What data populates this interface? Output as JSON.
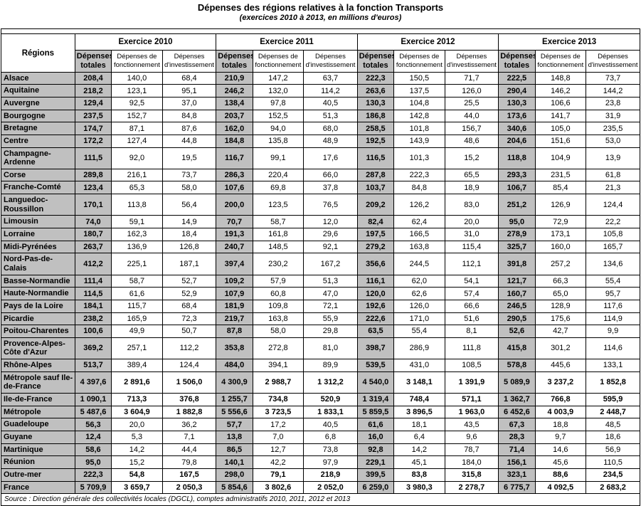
{
  "title": "Dépenses des régions relatives à la fonction Transports",
  "subtitle": "(exercices 2010 à 2013, en millions d'euros)",
  "source": "Source : Direction générale des collectivités locales (DGCL), comptes administratifs 2010, 2011, 2012 et 2013",
  "colors": {
    "shaded": "#c0c0c0"
  },
  "table": {
    "region_header": "Régions",
    "groups": [
      "Exercice 2010",
      "Exercice 2011",
      "Exercice 2012",
      "Exercice 2013"
    ],
    "subcolumns": [
      {
        "lines": [
          "Dépenses",
          "totales"
        ],
        "type": "tot"
      },
      {
        "lines": [
          "Dépenses de",
          "fonctionnement"
        ],
        "type": "sub"
      },
      {
        "lines": [
          "Dépenses",
          "d'investissement"
        ],
        "type": "sub"
      }
    ],
    "rows": [
      {
        "name": "Alsace",
        "bold": false,
        "values": [
          "208,4",
          "140,0",
          "68,4",
          "210,9",
          "147,2",
          "63,7",
          "222,3",
          "150,5",
          "71,7",
          "222,5",
          "148,8",
          "73,7"
        ]
      },
      {
        "name": "Aquitaine",
        "bold": false,
        "values": [
          "218,2",
          "123,1",
          "95,1",
          "246,2",
          "132,0",
          "114,2",
          "263,6",
          "137,5",
          "126,0",
          "290,4",
          "146,2",
          "144,2"
        ]
      },
      {
        "name": "Auvergne",
        "bold": false,
        "values": [
          "129,4",
          "92,5",
          "37,0",
          "138,4",
          "97,8",
          "40,5",
          "130,3",
          "104,8",
          "25,5",
          "130,3",
          "106,6",
          "23,8"
        ]
      },
      {
        "name": "Bourgogne",
        "bold": false,
        "values": [
          "237,5",
          "152,7",
          "84,8",
          "203,7",
          "152,5",
          "51,3",
          "186,8",
          "142,8",
          "44,0",
          "173,6",
          "141,7",
          "31,9"
        ]
      },
      {
        "name": "Bretagne",
        "bold": false,
        "values": [
          "174,7",
          "87,1",
          "87,6",
          "162,0",
          "94,0",
          "68,0",
          "258,5",
          "101,8",
          "156,7",
          "340,6",
          "105,0",
          "235,5"
        ]
      },
      {
        "name": "Centre",
        "bold": false,
        "values": [
          "172,2",
          "127,4",
          "44,8",
          "184,8",
          "135,8",
          "48,9",
          "192,5",
          "143,9",
          "48,6",
          "204,6",
          "151,6",
          "53,0"
        ]
      },
      {
        "name": "Champagne-Ardenne",
        "bold": false,
        "values": [
          "111,5",
          "92,0",
          "19,5",
          "116,7",
          "99,1",
          "17,6",
          "116,5",
          "101,3",
          "15,2",
          "118,8",
          "104,9",
          "13,9"
        ]
      },
      {
        "name": "Corse",
        "bold": false,
        "values": [
          "289,8",
          "216,1",
          "73,7",
          "286,3",
          "220,4",
          "66,0",
          "287,8",
          "222,3",
          "65,5",
          "293,3",
          "231,5",
          "61,8"
        ]
      },
      {
        "name": "Franche-Comté",
        "bold": false,
        "values": [
          "123,4",
          "65,3",
          "58,0",
          "107,6",
          "69,8",
          "37,8",
          "103,7",
          "84,8",
          "18,9",
          "106,7",
          "85,4",
          "21,3"
        ]
      },
      {
        "name": "Languedoc-Roussillon",
        "bold": false,
        "values": [
          "170,1",
          "113,8",
          "56,4",
          "200,0",
          "123,5",
          "76,5",
          "209,2",
          "126,2",
          "83,0",
          "251,2",
          "126,9",
          "124,4"
        ]
      },
      {
        "name": "Limousin",
        "bold": false,
        "values": [
          "74,0",
          "59,1",
          "14,9",
          "70,7",
          "58,7",
          "12,0",
          "82,4",
          "62,4",
          "20,0",
          "95,0",
          "72,9",
          "22,2"
        ]
      },
      {
        "name": "Lorraine",
        "bold": false,
        "values": [
          "180,7",
          "162,3",
          "18,4",
          "191,3",
          "161,8",
          "29,6",
          "197,5",
          "166,5",
          "31,0",
          "278,9",
          "173,1",
          "105,8"
        ]
      },
      {
        "name": "Midi-Pyrénées",
        "bold": false,
        "values": [
          "263,7",
          "136,9",
          "126,8",
          "240,7",
          "148,5",
          "92,1",
          "279,2",
          "163,8",
          "115,4",
          "325,7",
          "160,0",
          "165,7"
        ]
      },
      {
        "name": "Nord-Pas-de-Calais",
        "bold": false,
        "values": [
          "412,2",
          "225,1",
          "187,1",
          "397,4",
          "230,2",
          "167,2",
          "356,6",
          "244,5",
          "112,1",
          "391,8",
          "257,2",
          "134,6"
        ]
      },
      {
        "name": "Basse-Normandie",
        "bold": false,
        "values": [
          "111,4",
          "58,7",
          "52,7",
          "109,2",
          "57,9",
          "51,3",
          "116,1",
          "62,0",
          "54,1",
          "121,7",
          "66,3",
          "55,4"
        ]
      },
      {
        "name": "Haute-Normandie",
        "bold": false,
        "values": [
          "114,5",
          "61,6",
          "52,9",
          "107,9",
          "60,8",
          "47,0",
          "120,0",
          "62,6",
          "57,4",
          "160,7",
          "65,0",
          "95,7"
        ]
      },
      {
        "name": "Pays de la Loire",
        "bold": false,
        "values": [
          "184,1",
          "115,7",
          "68,4",
          "181,9",
          "109,8",
          "72,1",
          "192,6",
          "126,0",
          "66,6",
          "246,5",
          "128,9",
          "117,6"
        ]
      },
      {
        "name": "Picardie",
        "bold": false,
        "values": [
          "238,2",
          "165,9",
          "72,3",
          "219,7",
          "163,8",
          "55,9",
          "222,6",
          "171,0",
          "51,6",
          "290,5",
          "175,6",
          "114,9"
        ]
      },
      {
        "name": "Poitou-Charentes",
        "bold": false,
        "values": [
          "100,6",
          "49,9",
          "50,7",
          "87,8",
          "58,0",
          "29,8",
          "63,5",
          "55,4",
          "8,1",
          "52,6",
          "42,7",
          "9,9"
        ]
      },
      {
        "name": "Provence-Alpes-Côte d'Azur",
        "bold": false,
        "values": [
          "369,2",
          "257,1",
          "112,2",
          "353,8",
          "272,8",
          "81,0",
          "398,7",
          "286,9",
          "111,8",
          "415,8",
          "301,2",
          "114,6"
        ]
      },
      {
        "name": "Rhône-Alpes",
        "bold": false,
        "values": [
          "513,7",
          "389,4",
          "124,4",
          "484,0",
          "394,1",
          "89,9",
          "539,5",
          "431,0",
          "108,5",
          "578,8",
          "445,6",
          "133,1"
        ]
      },
      {
        "name": "Métropole sauf Ile-de-France",
        "bold": true,
        "values": [
          "4 397,6",
          "2 891,6",
          "1 506,0",
          "4 300,9",
          "2 988,7",
          "1 312,2",
          "4 540,0",
          "3 148,1",
          "1 391,9",
          "5 089,9",
          "3 237,2",
          "1 852,8"
        ]
      },
      {
        "name": "Ile-de-France",
        "bold": true,
        "values": [
          "1 090,1",
          "713,3",
          "376,8",
          "1 255,7",
          "734,8",
          "520,9",
          "1 319,4",
          "748,4",
          "571,1",
          "1 362,7",
          "766,8",
          "595,9"
        ]
      },
      {
        "name": "Métropole",
        "bold": true,
        "values": [
          "5 487,6",
          "3 604,9",
          "1 882,8",
          "5 556,6",
          "3 723,5",
          "1 833,1",
          "5 859,5",
          "3 896,5",
          "1 963,0",
          "6 452,6",
          "4 003,9",
          "2 448,7"
        ]
      },
      {
        "name": "Guadeloupe",
        "bold": false,
        "values": [
          "56,3",
          "20,0",
          "36,2",
          "57,7",
          "17,2",
          "40,5",
          "61,6",
          "18,1",
          "43,5",
          "67,3",
          "18,8",
          "48,5"
        ]
      },
      {
        "name": "Guyane",
        "bold": false,
        "values": [
          "12,4",
          "5,3",
          "7,1",
          "13,8",
          "7,0",
          "6,8",
          "16,0",
          "6,4",
          "9,6",
          "28,3",
          "9,7",
          "18,6"
        ]
      },
      {
        "name": "Martinique",
        "bold": false,
        "values": [
          "58,6",
          "14,2",
          "44,4",
          "86,5",
          "12,7",
          "73,8",
          "92,8",
          "14,2",
          "78,7",
          "71,4",
          "14,6",
          "56,9"
        ]
      },
      {
        "name": "Réunion",
        "bold": false,
        "values": [
          "95,0",
          "15,2",
          "79,8",
          "140,1",
          "42,2",
          "97,9",
          "229,1",
          "45,1",
          "184,0",
          "156,1",
          "45,6",
          "110,5"
        ]
      },
      {
        "name": "Outre-mer",
        "bold": true,
        "values": [
          "222,3",
          "54,8",
          "167,5",
          "298,0",
          "79,1",
          "218,9",
          "399,5",
          "83,8",
          "315,8",
          "323,1",
          "88,6",
          "234,5"
        ]
      },
      {
        "name": "France",
        "bold": true,
        "values": [
          "5 709,9",
          "3 659,7",
          "2 050,3",
          "5 854,6",
          "3 802,6",
          "2 052,0",
          "6 259,0",
          "3 980,3",
          "2 278,7",
          "6 775,7",
          "4 092,5",
          "2 683,2"
        ]
      }
    ]
  }
}
